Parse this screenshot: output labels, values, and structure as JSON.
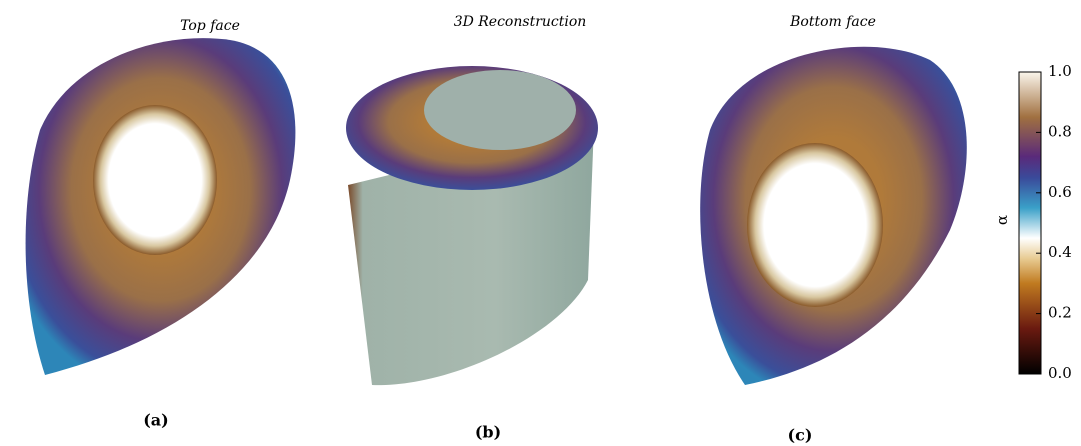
{
  "panels": [
    {
      "title": "Top face",
      "label": "(a)"
    },
    {
      "title": "3D Reconstruction",
      "label": "(b)"
    },
    {
      "title": "Bottom face",
      "label": "(c)"
    }
  ],
  "colorbar": {
    "label": "α",
    "lim": [
      0,
      1
    ],
    "ticks": [
      {
        "value": 0,
        "label": "0.0"
      },
      0.2,
      0.4,
      0.6,
      0.8,
      {
        "value": 1,
        "label": "1.0"
      }
    ]
  }
}
